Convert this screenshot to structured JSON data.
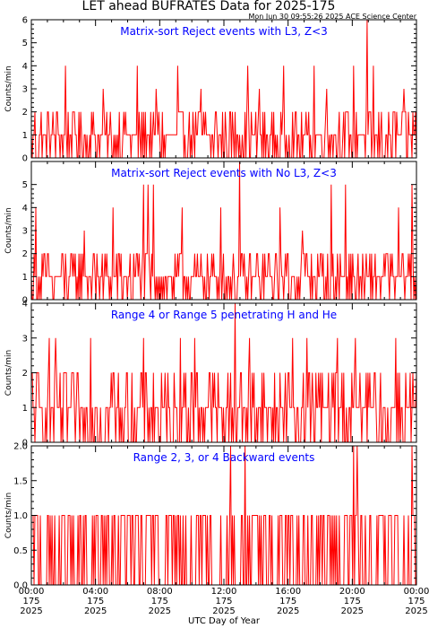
{
  "header": {
    "title": "LET ahead BUFRATES Data for 2025-175",
    "timestamp": "Mon Jun 30 09:55:26 2025 ACE Science Center"
  },
  "xaxis": {
    "label": "UTC Day of Year",
    "ticks": [
      {
        "time": "00:00",
        "day": "175",
        "year": "2025"
      },
      {
        "time": "04:00",
        "day": "175",
        "year": "2025"
      },
      {
        "time": "08:00",
        "day": "175",
        "year": "2025"
      },
      {
        "time": "12:00",
        "day": "175",
        "year": "2025"
      },
      {
        "time": "16:00",
        "day": "175",
        "year": "2025"
      },
      {
        "time": "20:00",
        "day": "175",
        "year": "2025"
      },
      {
        "time": "00:00",
        "day": "175",
        "year": "2025"
      }
    ]
  },
  "colors": {
    "data": "#ff0000",
    "panel_title": "#0000ff",
    "axes": "#000000",
    "background": "#ffffff"
  },
  "chart_data": [
    {
      "type": "line",
      "title": "Matrix-sort Reject events with L3, Z<3",
      "ylabel": "Counts/min",
      "ylim": [
        0,
        6
      ],
      "yticks": [
        "0",
        "1",
        "2",
        "3",
        "4",
        "5",
        "6"
      ],
      "xlim_hours": [
        0,
        24
      ],
      "baseline_levels": [
        0,
        1,
        2
      ],
      "peaks": [
        [
          2.1,
          4
        ],
        [
          6.6,
          4
        ],
        [
          9.1,
          4
        ],
        [
          13.5,
          4
        ],
        [
          15.7,
          4
        ],
        [
          17.6,
          4
        ],
        [
          20.1,
          4
        ],
        [
          20.9,
          6
        ],
        [
          21.3,
          4
        ],
        [
          4.5,
          3
        ],
        [
          7.8,
          3
        ],
        [
          10.6,
          3
        ],
        [
          14.2,
          3
        ],
        [
          18.4,
          3
        ],
        [
          23.2,
          3
        ]
      ]
    },
    {
      "type": "line",
      "title": "Matrix-sort Reject events with No L3, Z<3",
      "ylabel": "Counts/min",
      "ylim": [
        0,
        6
      ],
      "yticks": [
        "0",
        "1",
        "2",
        "3",
        "4",
        "5"
      ],
      "xlim_hours": [
        0,
        24
      ],
      "baseline_levels": [
        0,
        1,
        2
      ],
      "peaks": [
        [
          7.0,
          5
        ],
        [
          7.3,
          5
        ],
        [
          7.6,
          5
        ],
        [
          13.0,
          6
        ],
        [
          18.7,
          5
        ],
        [
          19.6,
          5
        ],
        [
          23.7,
          5
        ],
        [
          0.3,
          4
        ],
        [
          5.1,
          4
        ],
        [
          9.4,
          4
        ],
        [
          11.8,
          4
        ],
        [
          15.5,
          4
        ],
        [
          22.9,
          4
        ],
        [
          3.3,
          3
        ],
        [
          16.9,
          3
        ]
      ]
    },
    {
      "type": "line",
      "title": "Range 4 or Range 5 penetrating H and He",
      "ylabel": "Counts/min",
      "ylim": [
        0,
        4
      ],
      "yticks": [
        "0",
        "1",
        "2",
        "3",
        "4"
      ],
      "xlim_hours": [
        0,
        24
      ],
      "baseline_levels": [
        0,
        1,
        2
      ],
      "peaks": [
        [
          12.7,
          4
        ],
        [
          1.1,
          3
        ],
        [
          1.5,
          3
        ],
        [
          3.7,
          3
        ],
        [
          7.0,
          3
        ],
        [
          9.3,
          3
        ],
        [
          10.2,
          3
        ],
        [
          13.6,
          3
        ],
        [
          16.3,
          3
        ],
        [
          17.2,
          3
        ],
        [
          19.1,
          3
        ],
        [
          20.2,
          3
        ],
        [
          22.7,
          3
        ]
      ]
    },
    {
      "type": "line",
      "title": "Range 2, 3, or 4 Backward events",
      "ylabel": "Counts/min",
      "ylim": [
        0,
        2
      ],
      "yticks": [
        "0.0",
        "0.5",
        "1.0",
        "1.5",
        "2.0"
      ],
      "xlim_hours": [
        0,
        24
      ],
      "baseline_levels": [
        0,
        1
      ],
      "peaks": [
        [
          12.4,
          2
        ],
        [
          13.3,
          2
        ],
        [
          20.1,
          2
        ],
        [
          20.3,
          2
        ],
        [
          23.7,
          2
        ]
      ]
    }
  ]
}
